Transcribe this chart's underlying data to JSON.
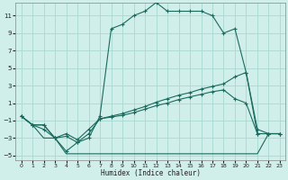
{
  "background_color": "#d0eeea",
  "grid_color": "#a8d8d0",
  "line_color": "#1a6b5e",
  "xlabel": "Humidex (Indice chaleur)",
  "xlim": [
    -0.5,
    23.5
  ],
  "ylim": [
    -5.5,
    12.5
  ],
  "yticks": [
    -5,
    -3,
    -1,
    1,
    3,
    5,
    7,
    9,
    11
  ],
  "xticks": [
    0,
    1,
    2,
    3,
    4,
    5,
    6,
    7,
    8,
    9,
    10,
    11,
    12,
    13,
    14,
    15,
    16,
    17,
    18,
    19,
    20,
    21,
    22,
    23
  ],
  "curve_main_x": [
    0,
    1,
    2,
    3,
    4,
    5,
    6,
    7,
    8,
    9,
    10,
    11,
    12,
    13,
    14,
    15,
    16,
    17,
    18,
    19,
    20,
    21,
    22,
    23
  ],
  "curve_main_y": [
    -0.5,
    -1.5,
    -1.5,
    -3.0,
    -4.5,
    -3.5,
    -3.0,
    -0.5,
    9.5,
    10.0,
    11.0,
    11.5,
    12.5,
    11.5,
    11.5,
    11.5,
    11.5,
    11.0,
    9.0,
    9.5,
    4.5,
    -2.0,
    -2.5,
    -2.5
  ],
  "curve_bottom_x": [
    0,
    1,
    2,
    3,
    4,
    5,
    6,
    7,
    8,
    9,
    10,
    11,
    12,
    13,
    14,
    15,
    16,
    17,
    18,
    19,
    20,
    21,
    22,
    23
  ],
  "curve_bottom_y": [
    -0.5,
    -1.5,
    -3.0,
    -3.0,
    -4.8,
    -4.8,
    -4.8,
    -4.8,
    -4.8,
    -4.8,
    -4.8,
    -4.8,
    -4.8,
    -4.8,
    -4.8,
    -4.8,
    -4.8,
    -4.8,
    -4.8,
    -4.8,
    -4.8,
    -4.8,
    -2.5,
    -2.5
  ],
  "curve_diag1_x": [
    0,
    1,
    2,
    3,
    4,
    5,
    6,
    7,
    8,
    9,
    10,
    11,
    12,
    13,
    14,
    15,
    16,
    17,
    18,
    19,
    20,
    21,
    22,
    23
  ],
  "curve_diag1_y": [
    -0.5,
    -1.5,
    -2.0,
    -3.0,
    -2.8,
    -3.5,
    -2.5,
    -0.8,
    -0.6,
    -0.4,
    -0.1,
    0.3,
    0.7,
    1.0,
    1.4,
    1.7,
    2.0,
    2.3,
    2.5,
    1.5,
    1.0,
    -2.5,
    -2.5,
    -2.5
  ],
  "curve_diag2_x": [
    0,
    1,
    2,
    3,
    4,
    5,
    6,
    7,
    8,
    9,
    10,
    11,
    12,
    13,
    14,
    15,
    16,
    17,
    18,
    19,
    20,
    21,
    22,
    23
  ],
  "curve_diag2_y": [
    -0.5,
    -1.5,
    -1.5,
    -3.0,
    -2.5,
    -3.2,
    -2.0,
    -0.8,
    -0.5,
    -0.2,
    0.2,
    0.6,
    1.1,
    1.5,
    1.9,
    2.2,
    2.6,
    2.9,
    3.2,
    4.0,
    4.5,
    -2.5,
    -2.5,
    -2.5
  ]
}
